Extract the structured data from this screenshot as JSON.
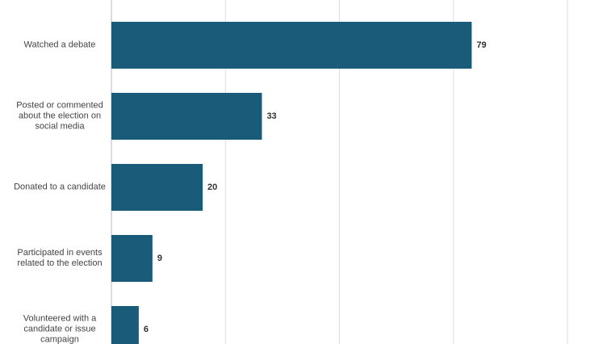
{
  "chart_data": {
    "type": "bar",
    "orientation": "horizontal",
    "categories": [
      "Watched a debate",
      "Posted or commented about the election on social media",
      "Donated to a candidate",
      "Participated in events related to the election",
      "Volunteered with a candidate or issue campaign"
    ],
    "values": [
      79,
      33,
      20,
      9,
      6
    ],
    "color": "#1a5b7a",
    "xlim": [
      0,
      100
    ],
    "xticks": [
      0,
      25,
      50,
      75,
      100
    ],
    "grid": true
  }
}
